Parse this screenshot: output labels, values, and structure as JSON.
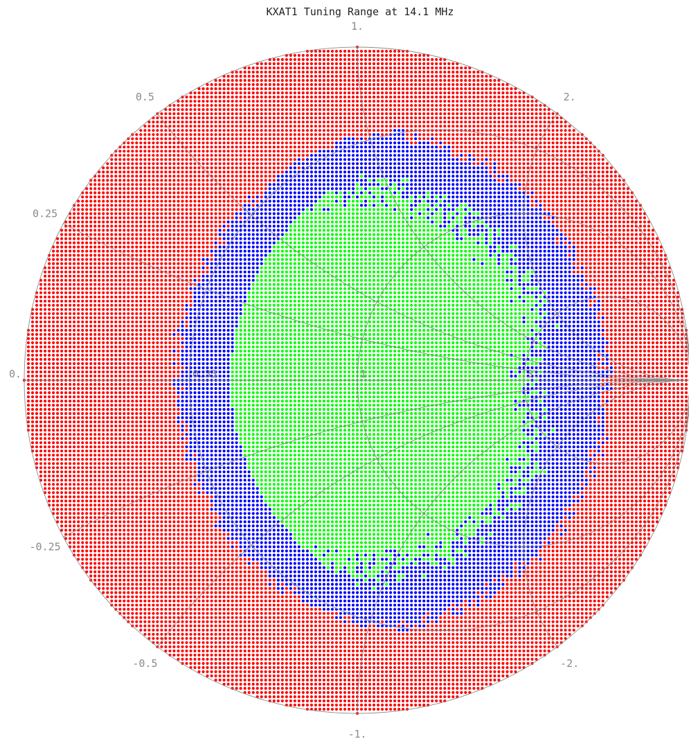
{
  "chart_data": {
    "type": "scatter",
    "title": "KXAT1 Tuning Range at 14.1 MHz",
    "projection": "smith-chart",
    "colors": {
      "unmatchable": "#ff0000",
      "matched_swr_above_target": "#0000ff",
      "matched_good": "#00ff00",
      "grid": "#888888",
      "labels": "#8a8a8a"
    },
    "resistance_circles": [
      0.33,
      1,
      3
    ],
    "reactance_arcs": [
      0.25,
      0.5,
      1,
      2,
      -0.25,
      -0.5,
      -1,
      -2
    ],
    "resistance_labels": [
      {
        "value": 0,
        "text": "0."
      },
      {
        "value": 0.33,
        "text": "0.33"
      },
      {
        "value": 1,
        "text": "1."
      },
      {
        "value": 3,
        "text": "3."
      }
    ],
    "reactance_labels": [
      {
        "value": 1,
        "text": "1."
      },
      {
        "value": 0.5,
        "text": "0.5"
      },
      {
        "value": 2,
        "text": "2."
      },
      {
        "value": 0.25,
        "text": "0.25"
      },
      {
        "value": -0.25,
        "text": "-0.25"
      },
      {
        "value": -0.5,
        "text": "-0.5"
      },
      {
        "value": -2,
        "text": "-2."
      },
      {
        "value": -1,
        "text": "-1."
      }
    ],
    "grid_points": {
      "spacing_gamma": 0.0125,
      "region_rules": {
        "green": "1.0 <= SWR <= about 4, normalized resistance 0.5 to about 3",
        "blue": "SWR between about 3 and 7",
        "red": "outer ring, SWR above about 7"
      }
    }
  }
}
